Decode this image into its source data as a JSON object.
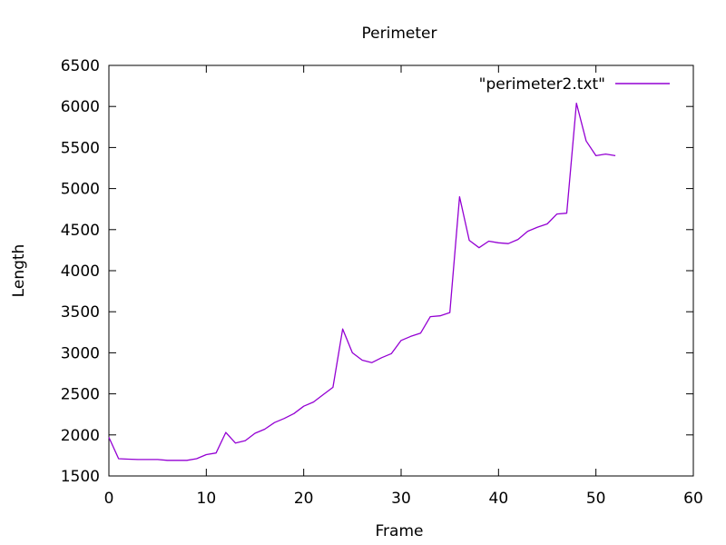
{
  "chart_data": {
    "type": "line",
    "title": "Perimeter",
    "xlabel": "Frame",
    "ylabel": "Length",
    "xlim": [
      0,
      60
    ],
    "ylim": [
      1500,
      6500
    ],
    "x_ticks": [
      0,
      10,
      20,
      30,
      40,
      50,
      60
    ],
    "y_ticks": [
      1500,
      2000,
      2500,
      3000,
      3500,
      4000,
      4500,
      5000,
      5500,
      6000,
      6500
    ],
    "grid": false,
    "legend_position": "top-right",
    "series": [
      {
        "name": "\"perimeter2.txt\"",
        "color": "#9400d3",
        "x": [
          0,
          1,
          2,
          3,
          4,
          5,
          6,
          7,
          8,
          9,
          10,
          11,
          12,
          13,
          14,
          15,
          16,
          17,
          18,
          19,
          20,
          21,
          22,
          23,
          24,
          25,
          26,
          27,
          28,
          29,
          30,
          31,
          32,
          33,
          34,
          35,
          36,
          37,
          38,
          39,
          40,
          41,
          42,
          43,
          44,
          45,
          46,
          47,
          48,
          49,
          50,
          51,
          52
        ],
        "y": [
          1970,
          1710,
          1705,
          1700,
          1700,
          1700,
          1690,
          1690,
          1690,
          1710,
          1760,
          1780,
          2030,
          1900,
          1930,
          2020,
          2070,
          2150,
          2200,
          2260,
          2350,
          2400,
          2490,
          2580,
          3290,
          3000,
          2910,
          2880,
          2940,
          2990,
          3150,
          3200,
          3240,
          3440,
          3450,
          3490,
          4900,
          4370,
          4280,
          4360,
          4340,
          4330,
          4380,
          4480,
          4530,
          4570,
          4690,
          4700,
          6040,
          5580,
          5400,
          5420,
          5400
        ]
      }
    ]
  }
}
